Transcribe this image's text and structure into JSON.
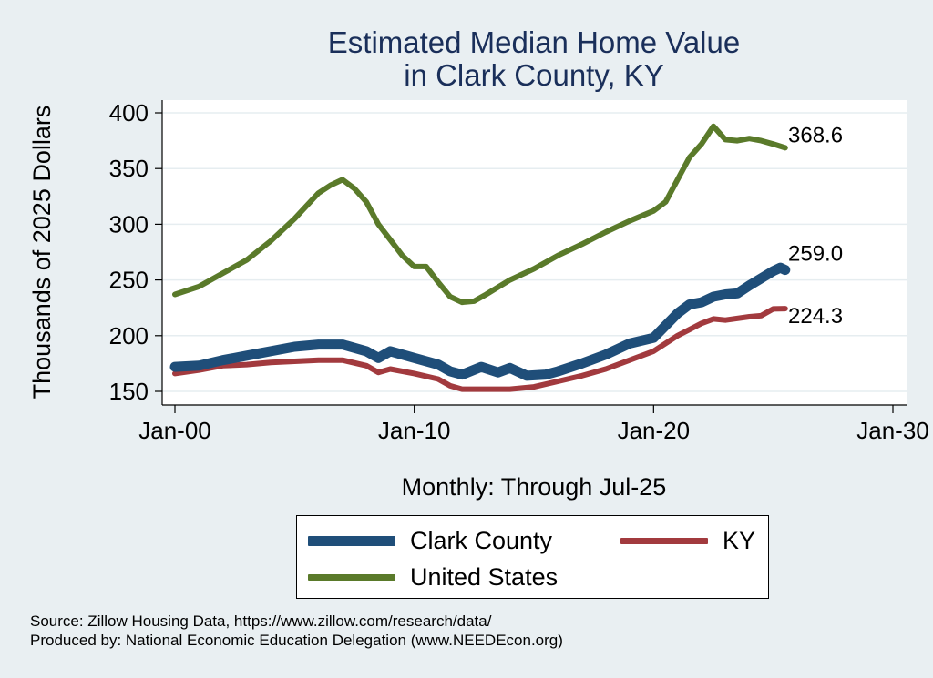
{
  "chart_data": {
    "type": "line",
    "title": "Estimated Median Home Value\nin Clark County, KY",
    "ylabel": "Thousands of 2025 Dollars",
    "xlabel": "Monthly: Through Jul-25",
    "ylim": [
      145,
      410
    ],
    "xlim": [
      2000,
      2030
    ],
    "yticks": [
      150,
      200,
      250,
      300,
      350,
      400
    ],
    "xticks": [
      {
        "value": 2000,
        "label": "Jan-00"
      },
      {
        "value": 2010,
        "label": "Jan-10"
      },
      {
        "value": 2020,
        "label": "Jan-20"
      },
      {
        "value": 2030,
        "label": "Jan-30"
      }
    ],
    "grid": true,
    "legend_position": "bottom",
    "series": [
      {
        "name": "Clark County",
        "color": "#1f4e79",
        "width": 11,
        "end_label": "259.0",
        "points": [
          [
            2000,
            172
          ],
          [
            2001,
            173
          ],
          [
            2002,
            178
          ],
          [
            2003,
            182
          ],
          [
            2004,
            186
          ],
          [
            2005,
            190
          ],
          [
            2006,
            192
          ],
          [
            2007,
            192
          ],
          [
            2008,
            186
          ],
          [
            2008.5,
            180
          ],
          [
            2009,
            186
          ],
          [
            2010,
            180
          ],
          [
            2011,
            174
          ],
          [
            2011.5,
            168
          ],
          [
            2012,
            165
          ],
          [
            2012.8,
            172
          ],
          [
            2013.5,
            167
          ],
          [
            2014,
            171
          ],
          [
            2014.7,
            164
          ],
          [
            2015.5,
            165
          ],
          [
            2016,
            168
          ],
          [
            2017,
            175
          ],
          [
            2018,
            183
          ],
          [
            2019,
            193
          ],
          [
            2020,
            198
          ],
          [
            2021,
            220
          ],
          [
            2021.5,
            228
          ],
          [
            2022,
            230
          ],
          [
            2022.5,
            235
          ],
          [
            2023,
            237
          ],
          [
            2023.5,
            238
          ],
          [
            2024,
            245
          ],
          [
            2025,
            258
          ],
          [
            2025.3,
            261
          ],
          [
            2025.5,
            259
          ]
        ]
      },
      {
        "name": "KY",
        "color": "#a23a3e",
        "width": 6,
        "end_label": "224.3",
        "points": [
          [
            2000,
            166
          ],
          [
            2001,
            169
          ],
          [
            2002,
            173
          ],
          [
            2003,
            174
          ],
          [
            2004,
            176
          ],
          [
            2005,
            177
          ],
          [
            2006,
            178
          ],
          [
            2007,
            178
          ],
          [
            2008,
            173
          ],
          [
            2008.5,
            167
          ],
          [
            2009,
            170
          ],
          [
            2010,
            166
          ],
          [
            2011,
            161
          ],
          [
            2011.5,
            155
          ],
          [
            2012,
            152
          ],
          [
            2013,
            152
          ],
          [
            2014,
            152
          ],
          [
            2015,
            154
          ],
          [
            2016,
            159
          ],
          [
            2017,
            164
          ],
          [
            2018,
            170
          ],
          [
            2019,
            178
          ],
          [
            2020,
            186
          ],
          [
            2021,
            200
          ],
          [
            2022,
            211
          ],
          [
            2022.5,
            215
          ],
          [
            2023,
            214
          ],
          [
            2024,
            217
          ],
          [
            2024.5,
            218
          ],
          [
            2025,
            224
          ],
          [
            2025.5,
            224.3
          ]
        ]
      },
      {
        "name": "United States",
        "color": "#5a7a2a",
        "width": 6,
        "end_label": "368.6",
        "points": [
          [
            2000,
            237
          ],
          [
            2001,
            244
          ],
          [
            2002,
            256
          ],
          [
            2003,
            268
          ],
          [
            2004,
            285
          ],
          [
            2005,
            305
          ],
          [
            2006,
            328
          ],
          [
            2006.5,
            335
          ],
          [
            2007,
            340
          ],
          [
            2007.5,
            332
          ],
          [
            2008,
            320
          ],
          [
            2008.5,
            300
          ],
          [
            2009,
            286
          ],
          [
            2009.5,
            272
          ],
          [
            2010,
            262
          ],
          [
            2010.5,
            262
          ],
          [
            2011,
            248
          ],
          [
            2011.5,
            235
          ],
          [
            2012,
            230
          ],
          [
            2012.5,
            231
          ],
          [
            2013,
            237
          ],
          [
            2014,
            250
          ],
          [
            2015,
            260
          ],
          [
            2016,
            272
          ],
          [
            2017,
            282
          ],
          [
            2018,
            293
          ],
          [
            2019,
            303
          ],
          [
            2020,
            312
          ],
          [
            2020.5,
            320
          ],
          [
            2021,
            340
          ],
          [
            2021.5,
            360
          ],
          [
            2022,
            372
          ],
          [
            2022.5,
            388
          ],
          [
            2023,
            376
          ],
          [
            2023.5,
            375
          ],
          [
            2024,
            377
          ],
          [
            2024.5,
            375
          ],
          [
            2025,
            372
          ],
          [
            2025.5,
            368.6
          ]
        ]
      }
    ]
  },
  "legend": {
    "items": [
      {
        "label": "Clark County",
        "color": "#1f4e79"
      },
      {
        "label": "KY",
        "color": "#a23a3e"
      },
      {
        "label": "United States",
        "color": "#5a7a2a"
      }
    ]
  },
  "footer": {
    "source": "Source: Zillow Housing Data, https://www.zillow.com/research/data/",
    "produced": "Produced by: National Economic Education Delegation (www.NEEDEcon.org)"
  }
}
